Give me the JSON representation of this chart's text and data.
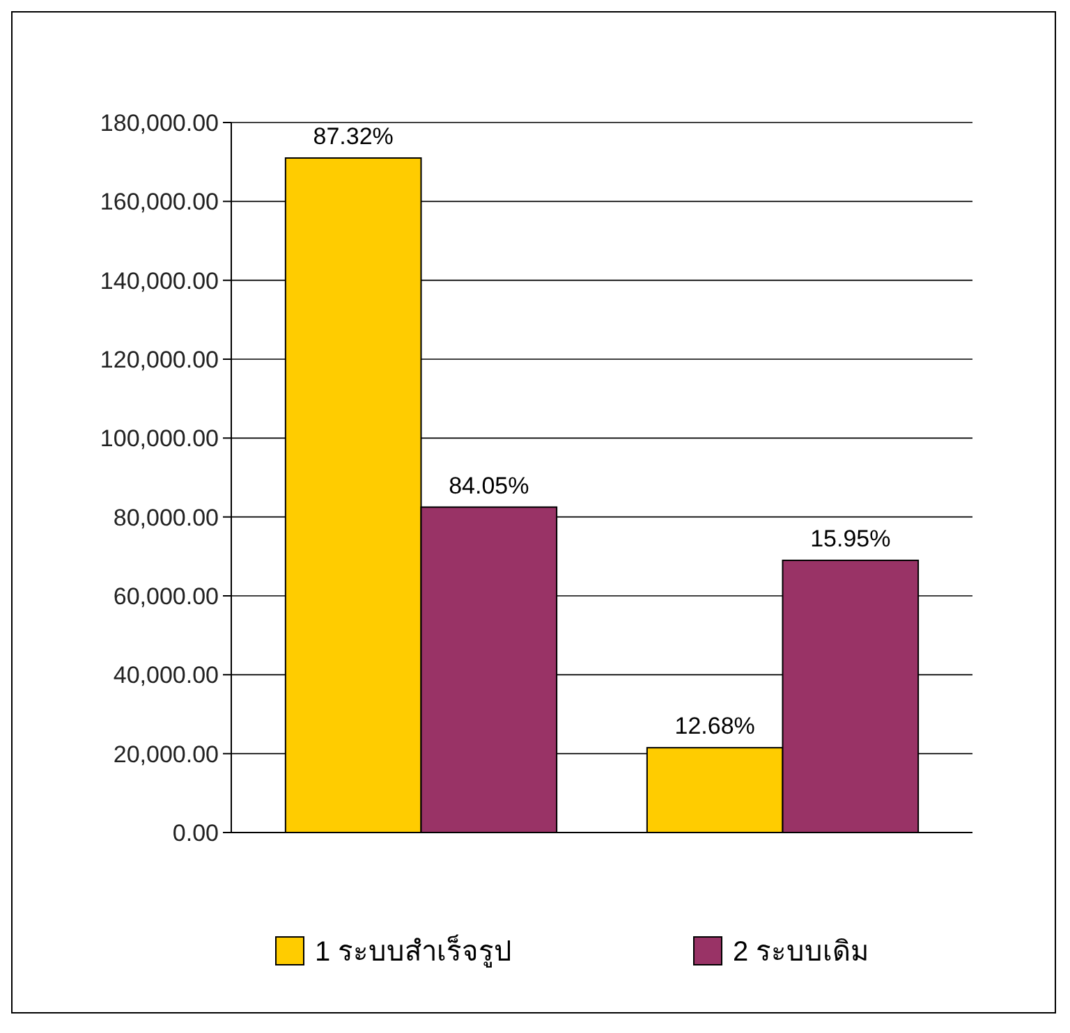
{
  "chart_data": {
    "type": "bar",
    "categories": [
      null,
      null
    ],
    "series": [
      {
        "name": "1 ระบบสำเร็จรูป",
        "color": "#ffcc00",
        "values": [
          171000,
          21500
        ]
      },
      {
        "name": "2 ระบบเดิม",
        "color": "#993366",
        "values": [
          82500,
          69000
        ]
      }
    ],
    "annotations": [
      {
        "text": "87.32%",
        "y": 171000
      },
      {
        "text": "12.68%",
        "y": 21500
      },
      {
        "text": "84.05%",
        "y": 82500
      },
      {
        "text": "15.95%",
        "y": 69000
      }
    ],
    "ylim": [
      0,
      180000
    ],
    "yticks": [
      {
        "value": 0,
        "label": "0.00"
      },
      {
        "value": 20000,
        "label": "20,000.00"
      },
      {
        "value": 40000,
        "label": "40,000.00"
      },
      {
        "value": 60000,
        "label": "60,000.00"
      },
      {
        "value": 80000,
        "label": "80,000.00"
      },
      {
        "value": 100000,
        "label": "100,000.00"
      },
      {
        "value": 120000,
        "label": "120,000.00"
      },
      {
        "value": 140000,
        "label": "140,000.00"
      },
      {
        "value": 160000,
        "label": "160,000.00"
      },
      {
        "value": 180000,
        "label": "180,000.00"
      }
    ],
    "grid": "y",
    "legend": "bottom"
  }
}
